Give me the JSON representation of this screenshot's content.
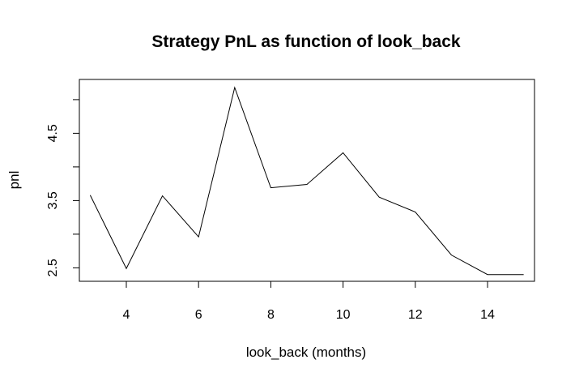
{
  "chart_data": {
    "type": "line",
    "title": "Strategy PnL as function of look_back",
    "xlabel": "look_back (months)",
    "ylabel": "pnl",
    "x": [
      3,
      4,
      5,
      6,
      7,
      8,
      9,
      10,
      11,
      12,
      13,
      14,
      15
    ],
    "series": [
      {
        "values": [
          3.58,
          2.49,
          3.57,
          2.96,
          5.18,
          3.69,
          3.74,
          4.21,
          3.55,
          3.33,
          2.69,
          2.4,
          2.4
        ]
      }
    ],
    "xlim": [
      2.7,
      15.3
    ],
    "ylim": [
      2.3,
      5.3
    ],
    "x_ticks": [
      4,
      6,
      8,
      10,
      12,
      14
    ],
    "y_ticks": [
      2.5,
      3,
      3.5,
      4,
      4.5,
      5
    ],
    "y_tick_labels": [
      "2.5",
      "",
      "3.5",
      "",
      "4.5",
      ""
    ],
    "grid": false,
    "line_color": "#000000"
  }
}
